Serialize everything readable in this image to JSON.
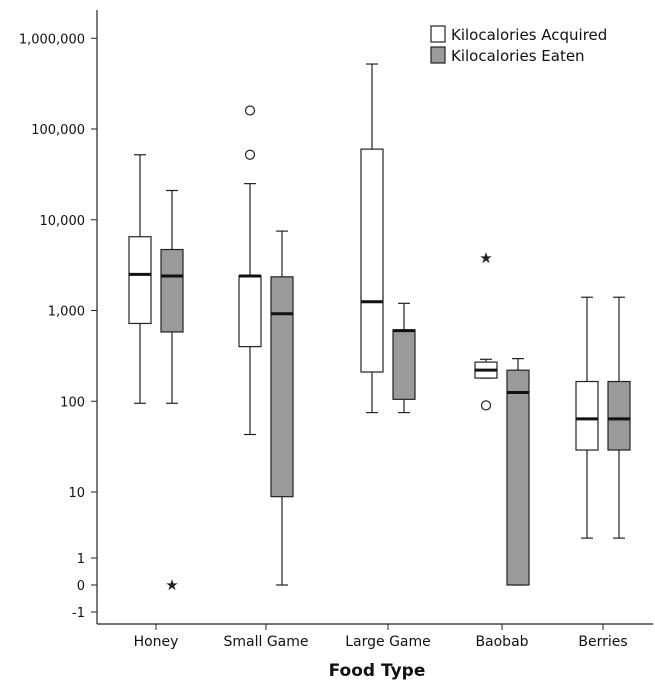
{
  "chart_data": {
    "type": "box",
    "xlabel": "Food Type",
    "ylabel": "",
    "y_scale": "log (with 0 and -1 ticks)",
    "y_ticks": [
      {
        "value": 1000000,
        "label": "1,000,000"
      },
      {
        "value": 100000,
        "label": "100,000"
      },
      {
        "value": 10000,
        "label": "10,000"
      },
      {
        "value": 1000,
        "label": "1,000"
      },
      {
        "value": 100,
        "label": "100"
      },
      {
        "value": 10,
        "label": "10"
      },
      {
        "value": 1,
        "label": "1"
      },
      {
        "value": 0,
        "label": "0"
      },
      {
        "value": -1,
        "label": "-1"
      }
    ],
    "categories": [
      "Honey",
      "Small Game",
      "Large Game",
      "Baobab",
      "Berries"
    ],
    "legend": {
      "position": "top-right",
      "entries": [
        {
          "name": "Kilocalories Acquired",
          "color": "#ffffff"
        },
        {
          "name": "Kilocalories Eaten",
          "color": "#9a9a9a"
        }
      ]
    },
    "series": [
      {
        "name": "Kilocalories Acquired",
        "color": "#ffffff",
        "boxes": [
          {
            "category": "Honey",
            "min": 95,
            "q1": 720,
            "median": 2500,
            "q3": 6500,
            "max": 52000,
            "outliers": [],
            "extremes": []
          },
          {
            "category": "Small Game",
            "min": 43,
            "q1": 400,
            "median": 2400,
            "q3": 2400,
            "max": 25000,
            "outliers": [
              52000,
              160000
            ],
            "extremes": []
          },
          {
            "category": "Large Game",
            "min": 75,
            "q1": 210,
            "median": 1250,
            "q3": 60000,
            "max": 520000,
            "outliers": [],
            "extremes": []
          },
          {
            "category": "Baobab",
            "min": 180,
            "q1": 180,
            "median": 220,
            "q3": 270,
            "max": 290,
            "outliers": [
              90
            ],
            "extremes": [
              3800
            ]
          },
          {
            "category": "Berries",
            "min": 2,
            "q1": 29,
            "median": 64,
            "q3": 165,
            "max": 1400,
            "outliers": [],
            "extremes": []
          }
        ]
      },
      {
        "name": "Kilocalories Eaten",
        "color": "#9a9a9a",
        "boxes": [
          {
            "category": "Honey",
            "min": 95,
            "q1": 580,
            "median": 2400,
            "q3": 4700,
            "max": 21000,
            "outliers": [],
            "extremes": [
              0
            ]
          },
          {
            "category": "Small Game",
            "min": 0,
            "q1": 8.5,
            "median": 920,
            "q3": 2350,
            "max": 7500,
            "outliers": [],
            "extremes": []
          },
          {
            "category": "Large Game",
            "min": 75,
            "q1": 105,
            "median": 600,
            "q3": 610,
            "max": 1200,
            "outliers": [],
            "extremes": []
          },
          {
            "category": "Baobab",
            "min": 0,
            "q1": 0,
            "median": 125,
            "q3": 220,
            "max": 295,
            "outliers": [],
            "extremes": []
          },
          {
            "category": "Berries",
            "min": 2,
            "q1": 29,
            "median": 64,
            "q3": 165,
            "max": 1400,
            "outliers": [],
            "extremes": []
          }
        ]
      }
    ]
  }
}
